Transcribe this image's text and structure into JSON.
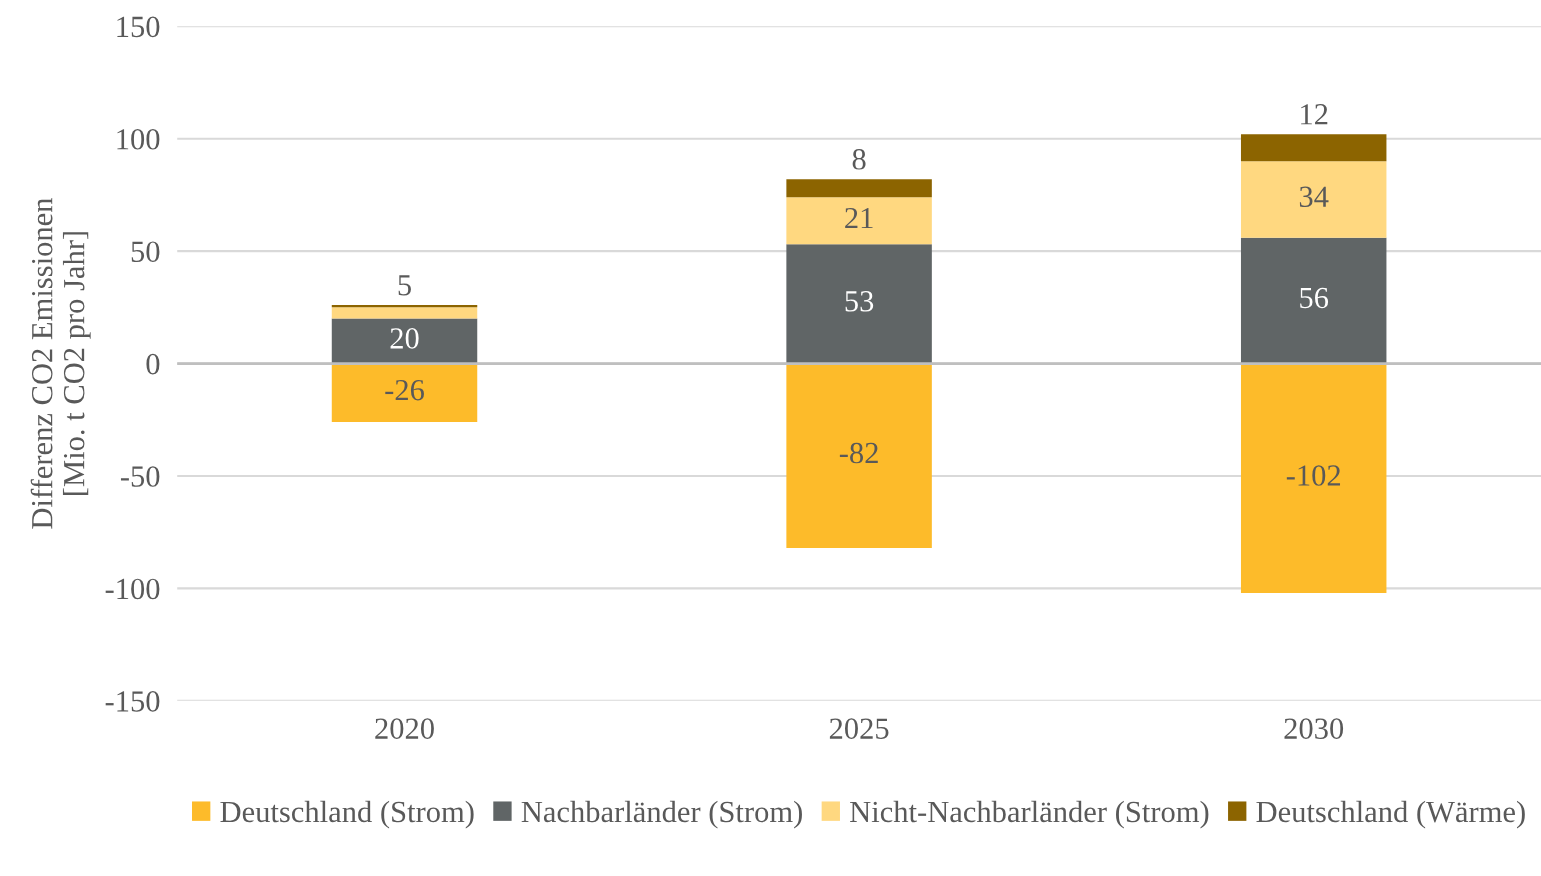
{
  "chart_data": {
    "type": "bar",
    "stacked": true,
    "ylabel": "Differenz CO2 Emissionen\n[Mio. t CO2 pro Jahr]",
    "categories": [
      "2020",
      "2025",
      "2030"
    ],
    "ylim": [
      -150,
      150
    ],
    "yticks": [
      -150,
      -100,
      -50,
      0,
      50,
      100,
      150
    ],
    "grid": "y",
    "legend": "bottom",
    "ref_lines": [
      {
        "axis": "y",
        "value": 0,
        "color": "#bfbfbf"
      }
    ],
    "series": [
      {
        "name": "Deutschland (Strom)",
        "color": "#fdbb2a",
        "values": [
          -26,
          -82,
          -102
        ],
        "value_labels": [
          "-26",
          "-82",
          "-102"
        ]
      },
      {
        "name": "Nachbarländer (Strom)",
        "color": "#606566",
        "values": [
          20,
          53,
          56
        ],
        "value_labels": [
          "20",
          "53",
          "56"
        ]
      },
      {
        "name": "Nicht-Nachbarländer (Strom)",
        "color": "#ffd880",
        "values": [
          5,
          21,
          34
        ],
        "value_labels": [
          "5",
          "21",
          "34"
        ]
      },
      {
        "name": "Deutschland (Wärme)",
        "color": "#8c6400",
        "values": [
          1,
          8,
          12
        ],
        "value_labels": [
          null,
          "8",
          "12"
        ]
      }
    ]
  }
}
